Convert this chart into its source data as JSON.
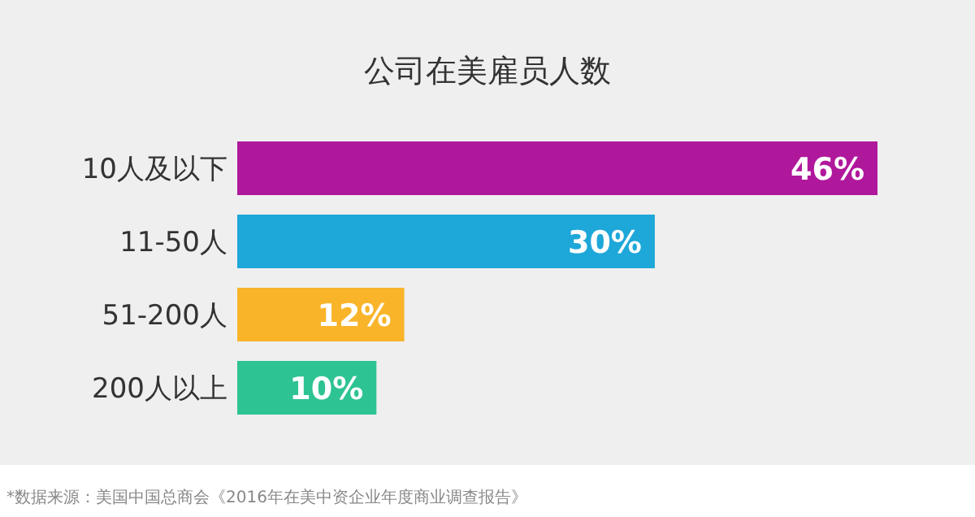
{
  "chart_data": {
    "type": "bar",
    "orientation": "horizontal",
    "title": "公司在美雇员人数",
    "categories": [
      "10人及以下",
      "11-50人",
      "51-200人",
      "200人以上"
    ],
    "values": [
      46,
      30,
      12,
      10
    ],
    "colors": [
      "#b0189c",
      "#1ea7d9",
      "#f9b42a",
      "#2ec393"
    ],
    "value_labels": [
      "46%",
      "30%",
      "12%",
      "10%"
    ],
    "annotations": [
      "*数据来源：美国中国总商会《2016年在美中资企业年度商业调查报告》"
    ]
  }
}
